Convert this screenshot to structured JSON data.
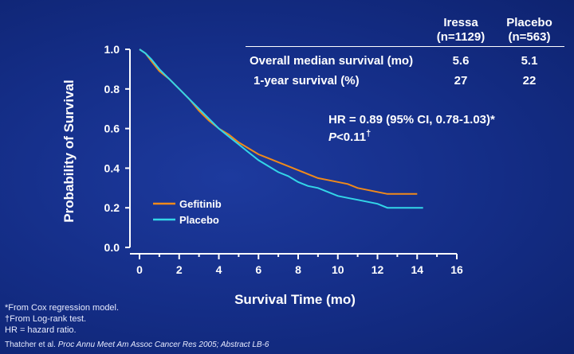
{
  "chart_data": {
    "type": "line",
    "xlabel": "Survival Time (mo)",
    "ylabel": "Probability of Survival",
    "xlim": [
      0,
      16
    ],
    "ylim": [
      0,
      1.0
    ],
    "x_ticks": [
      "0",
      "2",
      "4",
      "6",
      "8",
      "10",
      "12",
      "14",
      "16"
    ],
    "y_ticks": [
      "0.0",
      "0.2",
      "0.4",
      "0.6",
      "0.8",
      "1.0"
    ],
    "legend_position": "bottom-left",
    "series": [
      {
        "name": "Gefitinib",
        "color": "#f08a1a",
        "x": [
          0,
          0.3,
          0.6,
          1,
          1.5,
          2,
          2.5,
          3,
          3.5,
          4,
          4.5,
          5,
          5.5,
          6,
          6.5,
          7,
          7.5,
          8,
          8.5,
          9,
          9.5,
          10,
          10.5,
          11,
          11.5,
          12,
          12.5,
          13,
          13.5,
          14
        ],
        "y": [
          1.0,
          0.98,
          0.94,
          0.89,
          0.85,
          0.8,
          0.75,
          0.69,
          0.64,
          0.6,
          0.57,
          0.53,
          0.5,
          0.47,
          0.45,
          0.43,
          0.41,
          0.39,
          0.37,
          0.35,
          0.34,
          0.33,
          0.32,
          0.3,
          0.29,
          0.28,
          0.27,
          0.27,
          0.27,
          0.27
        ]
      },
      {
        "name": "Placebo",
        "color": "#33d6e8",
        "x": [
          0,
          0.3,
          0.6,
          1,
          1.5,
          2,
          2.5,
          3,
          3.5,
          4,
          4.5,
          5,
          5.5,
          6,
          6.5,
          7,
          7.5,
          8,
          8.5,
          9,
          9.5,
          10,
          10.5,
          11,
          11.5,
          12,
          12.5,
          13,
          13.5,
          14,
          14.3
        ],
        "y": [
          1.0,
          0.98,
          0.95,
          0.9,
          0.85,
          0.8,
          0.75,
          0.7,
          0.65,
          0.6,
          0.56,
          0.52,
          0.48,
          0.44,
          0.41,
          0.38,
          0.36,
          0.33,
          0.31,
          0.3,
          0.28,
          0.26,
          0.25,
          0.24,
          0.23,
          0.22,
          0.2,
          0.2,
          0.2,
          0.2,
          0.2
        ]
      }
    ]
  },
  "table": {
    "col1_header": [
      "Iressa",
      "(n=1129)"
    ],
    "col2_header": [
      "Placebo",
      "(n=563)"
    ],
    "rows": [
      {
        "label": "Overall median survival (mo)",
        "v1": "5.6",
        "v2": "5.1"
      },
      {
        "label": "1-year survival (%)",
        "v1": "27",
        "v2": "22"
      }
    ]
  },
  "hr_text": "HR = 0.89 (95% CI, 0.78-1.03)*",
  "p_text_italic": "P",
  "p_text_rest": "<0.11",
  "p_dagger": "†",
  "footnotes": [
    "*From Cox regression model.",
    "†From  Log-rank test.",
    " HR = hazard ratio."
  ],
  "citation_prefix": "Thatcher et al. ",
  "citation_italic": "Proc Annu Meet Am Assoc Cancer Res 2005; Abstract LB-6"
}
